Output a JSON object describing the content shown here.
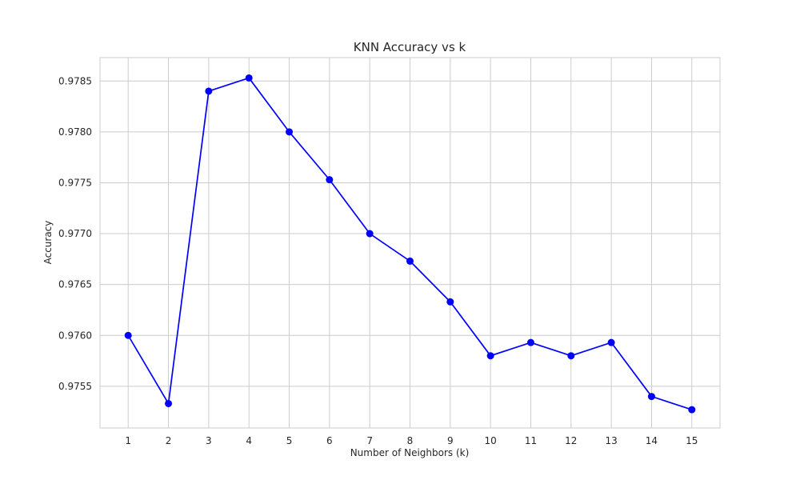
{
  "chart_data": {
    "type": "line",
    "title": "KNN Accuracy vs k",
    "xlabel": "Number of Neighbors (k)",
    "ylabel": "Accuracy",
    "x": [
      1,
      2,
      3,
      4,
      5,
      6,
      7,
      8,
      9,
      10,
      11,
      12,
      13,
      14,
      15
    ],
    "series": [
      {
        "values": [
          0.976,
          0.97533,
          0.9784,
          0.97853,
          0.978,
          0.97753,
          0.977,
          0.97673,
          0.97633,
          0.9758,
          0.97593,
          0.9758,
          0.97593,
          0.9754,
          0.97527
        ],
        "color": "#0000ff",
        "marker": "circle"
      }
    ],
    "xlim": [
      0.3,
      15.7
    ],
    "ylim": [
      0.97509,
      0.97873
    ],
    "xticks": [
      "1",
      "2",
      "3",
      "4",
      "5",
      "6",
      "7",
      "8",
      "9",
      "10",
      "11",
      "12",
      "13",
      "14",
      "15"
    ],
    "yticks": [
      "0.9755",
      "0.9760",
      "0.9765",
      "0.9770",
      "0.9775",
      "0.9780",
      "0.9785"
    ],
    "grid": true,
    "colors": {
      "grid": "#cccccc",
      "frame": "#cccccc",
      "text": "#262626"
    }
  }
}
